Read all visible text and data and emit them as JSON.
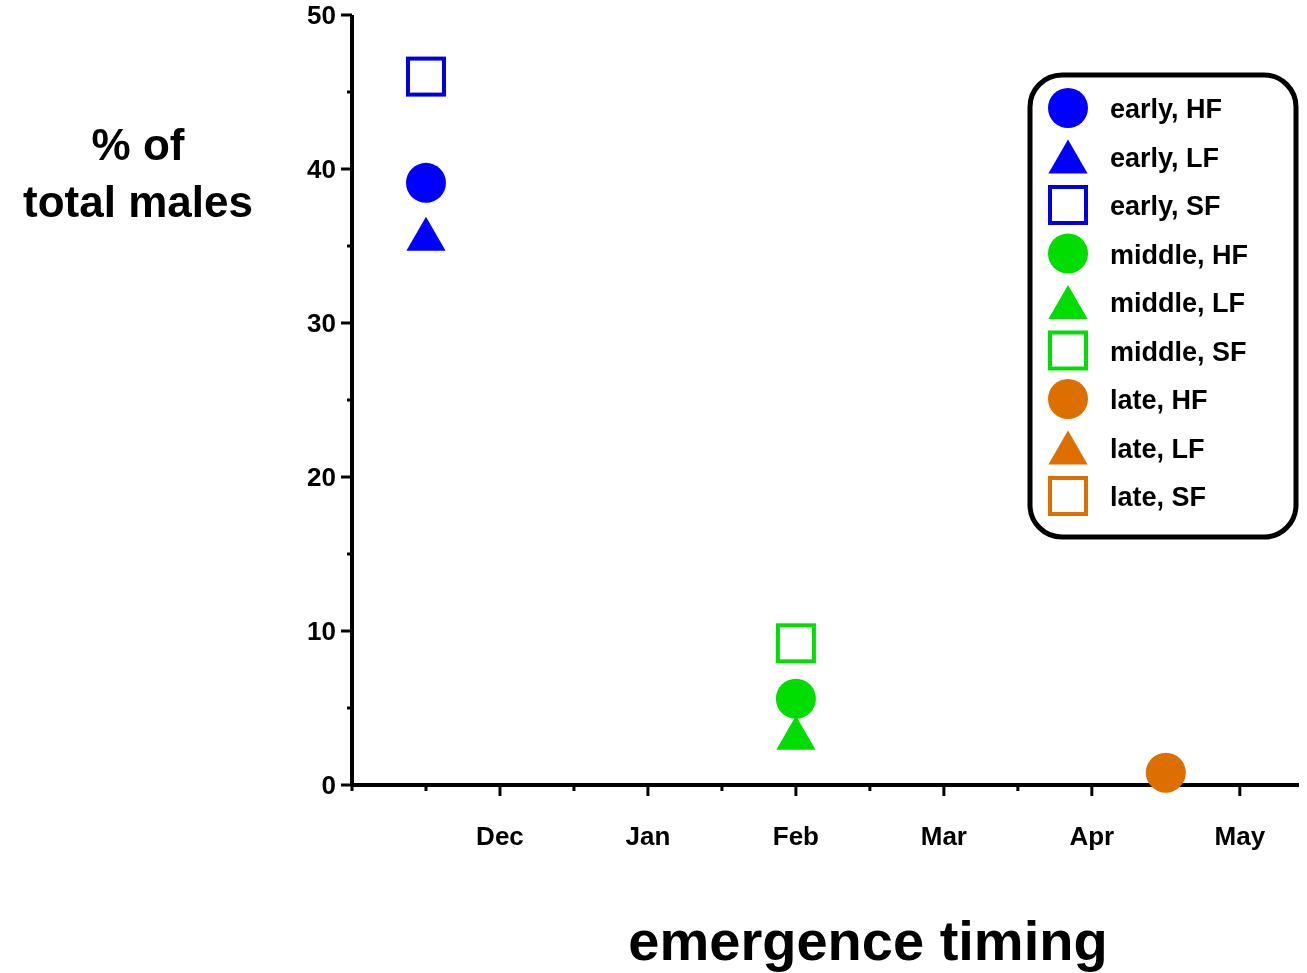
{
  "chart_data": {
    "type": "scatter",
    "xlabel": "emergence timing",
    "ylabel": "% of\ntotal males",
    "categories": [
      null,
      null,
      "Dec",
      null,
      "Jan",
      null,
      "Feb",
      null,
      "Mar",
      null,
      "Apr",
      null,
      "May"
    ],
    "ylim": [
      0,
      50
    ],
    "yticks": [
      0,
      {
        "value": 5,
        "label": null
      },
      10,
      {
        "value": 15,
        "label": null
      },
      20,
      {
        "value": 25,
        "label": null
      },
      30,
      {
        "value": 35,
        "label": null
      },
      40,
      {
        "value": 45,
        "label": null
      },
      50
    ],
    "legend": "top right",
    "series": [
      {
        "name": "early, HF",
        "color": "#0000ff",
        "marker": "circle",
        "values": [
          null,
          39.1,
          null,
          null,
          null,
          null,
          null,
          null,
          null,
          null,
          null,
          null,
          null
        ]
      },
      {
        "name": "early, LF",
        "color": "#0000ff",
        "marker": "triangle",
        "values": [
          null,
          35.8,
          null,
          null,
          null,
          null,
          null,
          null,
          null,
          null,
          null,
          null,
          null
        ]
      },
      {
        "name": "early, SF",
        "color": "#0000dd",
        "marker": "square",
        "values": [
          null,
          46.0,
          null,
          null,
          null,
          null,
          null,
          null,
          null,
          null,
          null,
          null,
          null
        ]
      },
      {
        "name": "middle, HF",
        "color": "#00dd00",
        "marker": "circle",
        "values": [
          null,
          null,
          null,
          null,
          null,
          null,
          5.6,
          null,
          null,
          null,
          null,
          null,
          null
        ]
      },
      {
        "name": "middle, LF",
        "color": "#00dd00",
        "marker": "triangle",
        "values": [
          null,
          null,
          null,
          null,
          null,
          null,
          3.4,
          null,
          null,
          null,
          null,
          null,
          null
        ]
      },
      {
        "name": "middle, SF",
        "color": "#00dd00",
        "marker": "square",
        "values": [
          null,
          null,
          null,
          null,
          null,
          null,
          9.2,
          null,
          null,
          null,
          null,
          null,
          null
        ]
      },
      {
        "name": "late, HF",
        "color": "#dd6e00",
        "marker": "circle",
        "values": [
          null,
          null,
          null,
          null,
          null,
          null,
          null,
          null,
          null,
          null,
          null,
          0.8,
          null
        ]
      },
      {
        "name": "late, LF",
        "color": "#dd6e00",
        "marker": "triangle",
        "values": [
          null,
          null,
          null,
          null,
          null,
          null,
          null,
          null,
          null,
          null,
          null,
          null,
          null
        ]
      },
      {
        "name": "late, SF",
        "color": "#dd6e00",
        "marker": "square",
        "values": [
          null,
          null,
          null,
          null,
          null,
          null,
          null,
          null,
          null,
          null,
          null,
          null,
          null
        ]
      }
    ]
  }
}
